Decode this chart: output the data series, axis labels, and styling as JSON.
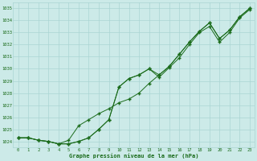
{
  "xlabel": "Graphe pression niveau de la mer (hPa)",
  "hours": [
    0,
    1,
    2,
    3,
    4,
    5,
    6,
    7,
    8,
    9,
    10,
    11,
    12,
    13,
    14,
    15,
    16,
    17,
    18,
    19,
    20,
    21,
    22,
    23
  ],
  "line1": [
    1024.3,
    1024.3,
    1024.1,
    1024.0,
    1023.8,
    1023.8,
    1024.0,
    1024.3,
    1025.0,
    1025.8,
    1028.5,
    1029.2,
    1029.5,
    1030.0,
    1029.3,
    1030.1,
    1030.9,
    1032.0,
    1033.0,
    1033.5,
    1032.2,
    1033.0,
    1034.2,
    1034.9
  ],
  "line2": [
    1024.3,
    1024.3,
    1024.1,
    1024.0,
    1023.8,
    1023.8,
    1024.0,
    1024.3,
    1025.0,
    1025.8,
    1028.5,
    1029.2,
    1029.5,
    1030.0,
    1029.5,
    1030.2,
    1031.2,
    1032.2,
    1033.1,
    1033.8,
    1032.5,
    1033.2,
    1034.3,
    1035.0
  ],
  "line3": [
    1024.3,
    1024.3,
    1024.1,
    1024.0,
    1023.8,
    1024.1,
    1025.3,
    1025.8,
    1026.3,
    1026.7,
    1027.2,
    1027.5,
    1028.0,
    1028.8,
    1029.5,
    1030.2,
    1031.2,
    1032.2,
    1033.1,
    1033.8,
    1032.5,
    1033.2,
    1034.3,
    1035.0
  ],
  "line_color": "#1a6b1a",
  "marker_color": "#1a6b1a",
  "bg_color": "#cceae8",
  "grid_color": "#aad5d3",
  "text_color": "#1a6b1a",
  "ylim": [
    1023.5,
    1035.5
  ],
  "yticks": [
    1024,
    1025,
    1026,
    1027,
    1028,
    1029,
    1030,
    1031,
    1032,
    1033,
    1034,
    1035
  ],
  "xlim": [
    -0.5,
    23.5
  ],
  "xticks": [
    0,
    1,
    2,
    3,
    4,
    5,
    6,
    7,
    8,
    9,
    10,
    11,
    12,
    13,
    14,
    15,
    16,
    17,
    18,
    19,
    20,
    21,
    22,
    23
  ]
}
